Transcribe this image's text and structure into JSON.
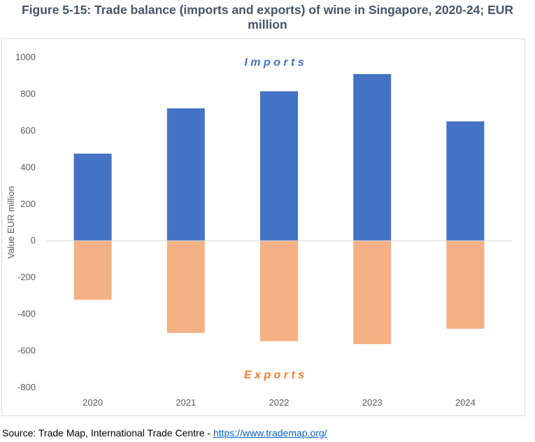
{
  "title_line1": "Figure 5-15: Trade balance (imports and exports) of wine in Singapore, 2020-24; EUR",
  "title_line2": "million",
  "source": {
    "prefix": "Source: Trade Map, International Trade Centre - ",
    "link_text": "https://www.trademap.org/"
  },
  "chart_data": {
    "type": "bar",
    "stacked": true,
    "categories": [
      "2020",
      "2021",
      "2022",
      "2023",
      "2024"
    ],
    "series": [
      {
        "name": "Imports",
        "values": [
          475,
          722,
          815,
          909,
          651
        ],
        "color": "#4472c4"
      },
      {
        "name": "Exports",
        "values": [
          -322,
          -503,
          -548,
          -564,
          -480
        ],
        "color": "#f4b183"
      }
    ],
    "annotations": [
      {
        "text": "I m p o r t s",
        "color": "#4472c4"
      },
      {
        "text": "E x p o r t s",
        "color": "#ed7d31"
      }
    ],
    "ylabel": "Value EUR million",
    "xlabel": "",
    "ylim": [
      -800,
      1000
    ],
    "yticks": [
      1000,
      800,
      600,
      400,
      200,
      0,
      -200,
      -400,
      -600,
      -800
    ],
    "grid": false,
    "legend": "none"
  }
}
